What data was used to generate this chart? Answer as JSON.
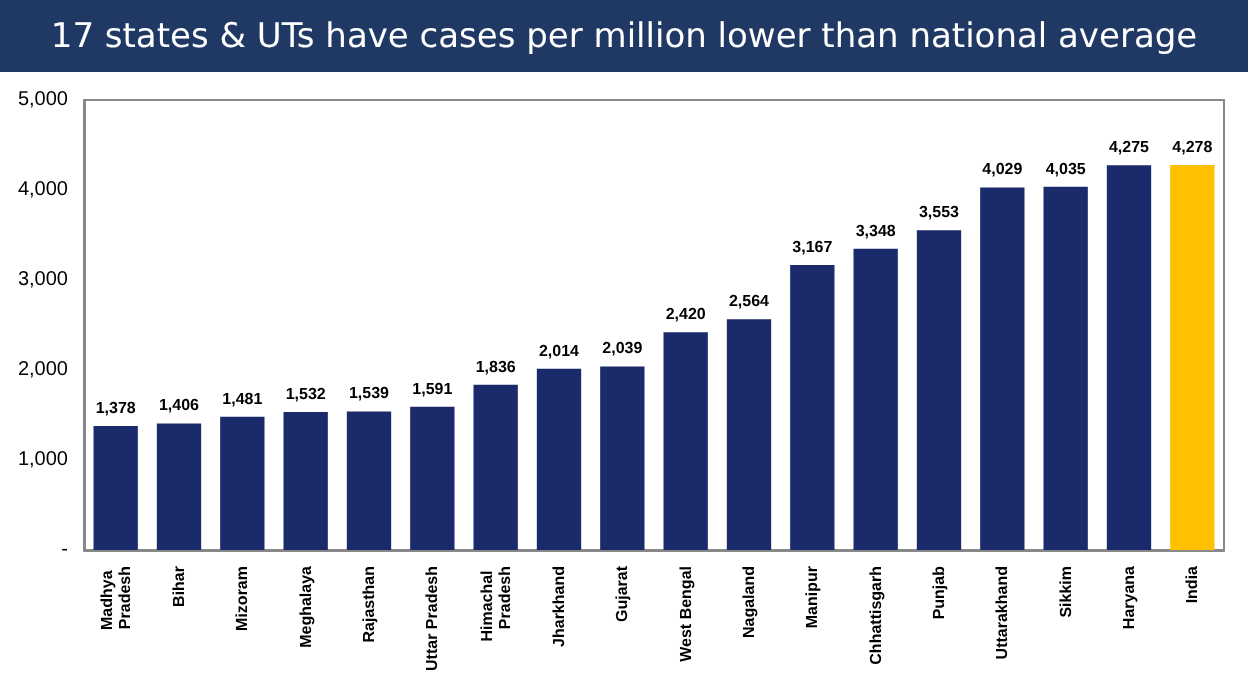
{
  "chart_data": {
    "type": "bar",
    "title": "17 states & UTs have cases per million lower than national average",
    "categories": [
      "Madhya Pradesh",
      "Bihar",
      "Mizoram",
      "Meghalaya",
      "Rajasthan",
      "Uttar Pradesh",
      "Himachal Pradesh",
      "Jharkhand",
      "Gujarat",
      "West Bengal",
      "Nagaland",
      "Manipur",
      "Chhattisgarh",
      "Punjab",
      "Uttarakhand",
      "Sikkim",
      "Haryana",
      "India"
    ],
    "values": [
      1378,
      1406,
      1481,
      1532,
      1539,
      1591,
      1836,
      2014,
      2039,
      2420,
      2564,
      3167,
      3348,
      3553,
      4029,
      4035,
      4275,
      4278
    ],
    "colors": [
      "#1b2a6b",
      "#1b2a6b",
      "#1b2a6b",
      "#1b2a6b",
      "#1b2a6b",
      "#1b2a6b",
      "#1b2a6b",
      "#1b2a6b",
      "#1b2a6b",
      "#1b2a6b",
      "#1b2a6b",
      "#1b2a6b",
      "#1b2a6b",
      "#1b2a6b",
      "#1b2a6b",
      "#1b2a6b",
      "#1b2a6b",
      "#ffc000"
    ],
    "ylim": [
      0,
      5000
    ],
    "yticks": [
      {
        "value": 0,
        "label": "-"
      },
      {
        "value": 1000,
        "label": "1,000"
      },
      {
        "value": 2000,
        "label": "2,000"
      },
      {
        "value": 3000,
        "label": "3,000"
      },
      {
        "value": 4000,
        "label": "4,000"
      },
      {
        "value": 5000,
        "label": "5,000"
      }
    ],
    "value_labels": [
      "1,378",
      "1,406",
      "1,481",
      "1,532",
      "1,539",
      "1,591",
      "1,836",
      "2,014",
      "2,039",
      "2,420",
      "2,564",
      "3,167",
      "3,348",
      "3,553",
      "4,029",
      "4,035",
      "4,275",
      "4,278"
    ],
    "grid": false
  }
}
